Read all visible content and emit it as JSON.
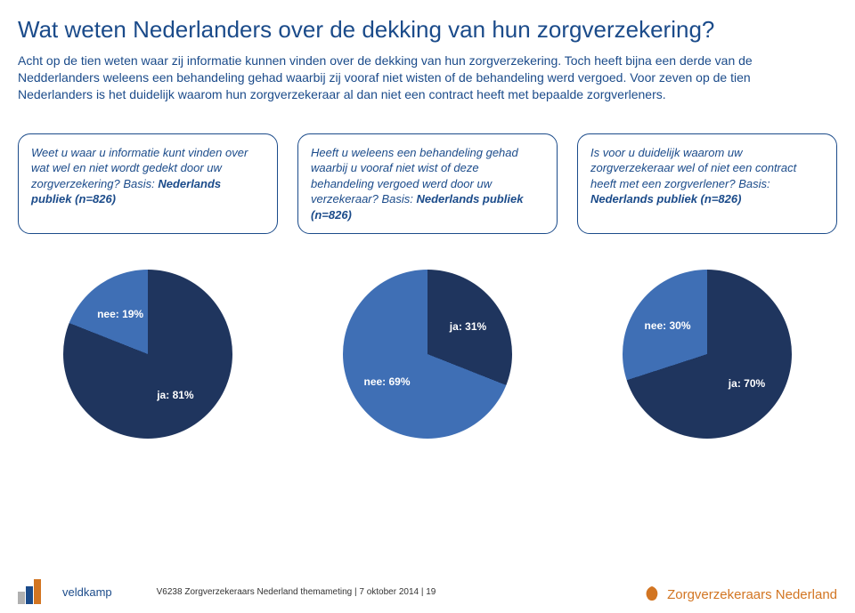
{
  "title": "Wat weten Nederlanders over de dekking van hun zorgverzekering?",
  "intro": "Acht op de tien weten waar zij informatie kunnen vinden over de dekking van hun zorgverzekering. Toch heeft bijna een derde van de Nedderlanders weleens een behandeling gehad waarbij zij vooraf niet wisten of de behandeling werd vergoed. Voor zeven op de tien Nederlanders is het duidelijk waarom hun zorgverzekeraar al dan niet een contract heeft met bepaalde zorgverleners.",
  "colors": {
    "brand_blue": "#1b4b8a",
    "logo_orange": "#d27522",
    "text_white": "#ffffff",
    "ja": "#1f355e",
    "nee": "#3f6fb5"
  },
  "questions": [
    {
      "text": "Weet u waar u informatie kunt vinden over wat wel en niet wordt gedekt door uw zorgverzekering? Basis: ",
      "basis": "Nederlands publiek (n=826)"
    },
    {
      "text": "Heeft u weleens een behandeling gehad waarbij u vooraf niet wist of deze behandeling vergoed werd door uw verzekeraar? Basis: ",
      "basis": "Nederlands publiek (n=826)"
    },
    {
      "text": "Is voor u duidelijk waarom uw zorgverzekeraar wel of niet een contract heeft met een zorgverlener? Basis: ",
      "basis": "Nederlands publiek (n=826)"
    }
  ],
  "charts": [
    {
      "type": "pie",
      "slices": [
        {
          "label": "ja: 81%",
          "value": 81,
          "color": "#1f355e"
        },
        {
          "label": "nee: 19%",
          "value": 19,
          "color": "#3f6fb5"
        }
      ]
    },
    {
      "type": "pie",
      "slices": [
        {
          "label": "ja: 31%",
          "value": 31,
          "color": "#1f355e"
        },
        {
          "label": "nee: 69%",
          "value": 69,
          "color": "#3f6fb5"
        }
      ]
    },
    {
      "type": "pie",
      "slices": [
        {
          "label": "ja: 70%",
          "value": 70,
          "color": "#1f355e"
        },
        {
          "label": "nee: 30%",
          "value": 30,
          "color": "#3f6fb5"
        }
      ]
    }
  ],
  "footer": {
    "left_logo": "veldkamp",
    "text": "V6238 Zorgverzekeraars Nederland themameting | 7 oktober 2014 | 19",
    "right_logo": "Zorgverzekeraars Nederland"
  }
}
